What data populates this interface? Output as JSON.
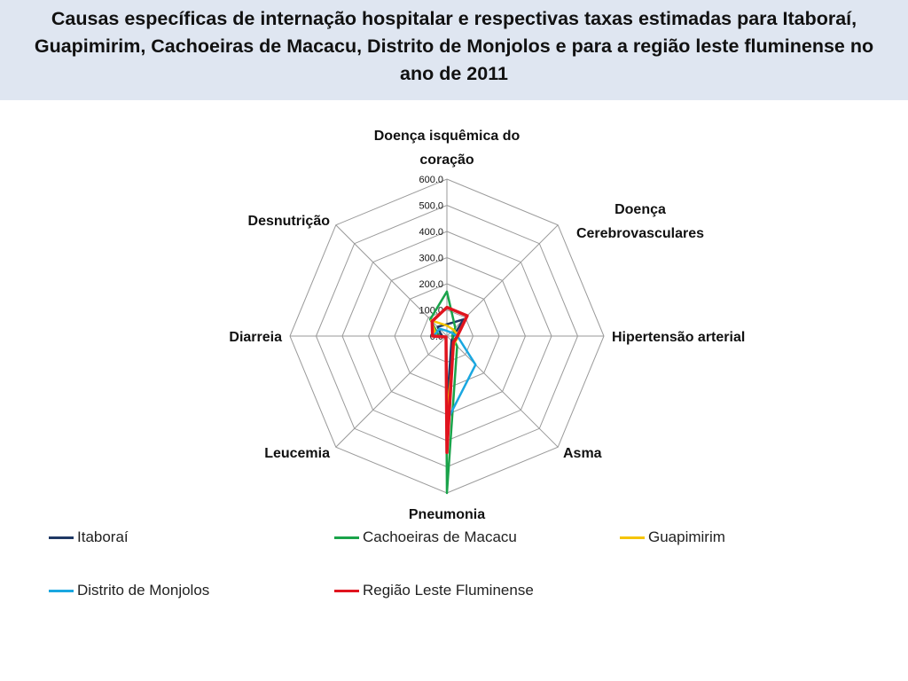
{
  "chart_data": {
    "type": "radar",
    "title": "Causas específicas de internação hospitalar e respectivas taxas estimadas para Itaboraí, Guapimirim, Cachoeiras de Macacu, Distrito de Monjolos e para a região leste fluminense no ano de 2011",
    "categories": [
      "Doença isquêmica do coração",
      "Doença Cerebrovasculares",
      "Hipertensão arterial",
      "Asma",
      "Pneumonia",
      "Leucemia",
      "Diarreia",
      "Desnutrição"
    ],
    "rlim": [
      0,
      600
    ],
    "ticks": [
      "0.0",
      "100.0",
      "200.0",
      "300.0",
      "400.0",
      "500.0",
      "600.0"
    ],
    "legend_position": "bottom",
    "series": [
      {
        "name": "Itaboraí",
        "color": "#1f3864",
        "values": [
          45,
          90,
          25,
          25,
          270,
          5,
          20,
          50
        ]
      },
      {
        "name": "Cachoeiras de Macacu",
        "color": "#1aa34a",
        "values": [
          170,
          45,
          20,
          55,
          600,
          5,
          30,
          90
        ]
      },
      {
        "name": "Guapimirim",
        "color": "#f5c400",
        "values": [
          40,
          35,
          45,
          40,
          300,
          5,
          40,
          85
        ]
      },
      {
        "name": "Distrito de Monjolos",
        "color": "#1aa7e0",
        "values": [
          20,
          20,
          40,
          155,
          325,
          5,
          50,
          40
        ]
      },
      {
        "name": "Região Leste Fluminense",
        "color": "#e0141e",
        "values": [
          110,
          110,
          40,
          35,
          445,
          5,
          55,
          80
        ]
      }
    ]
  }
}
